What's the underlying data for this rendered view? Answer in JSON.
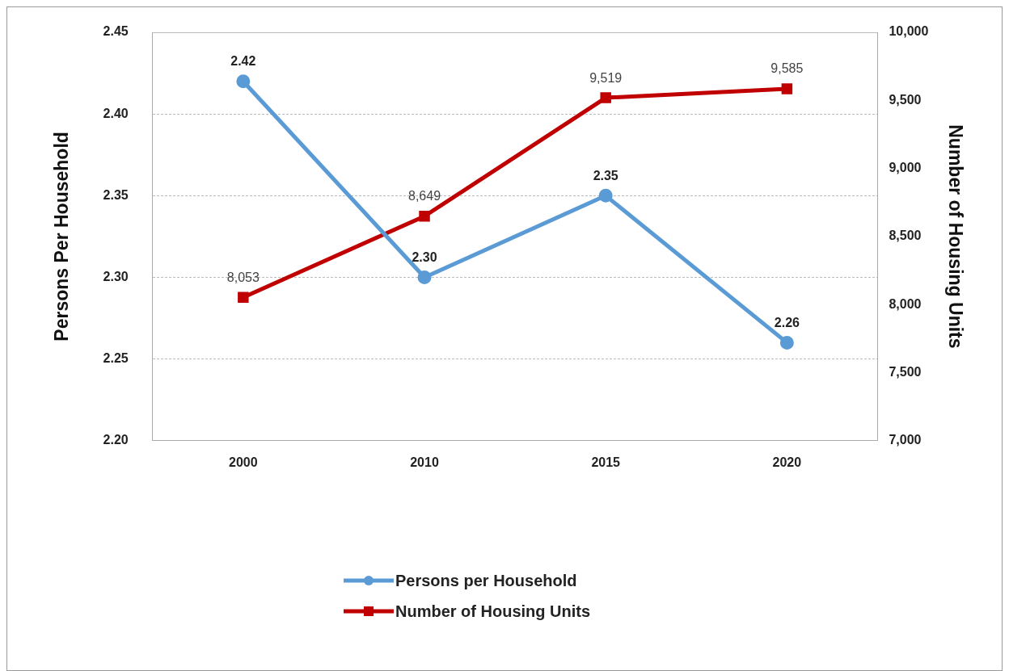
{
  "chart_data": {
    "type": "line",
    "categories": [
      "2000",
      "2010",
      "2015",
      "2020"
    ],
    "ylabel": "Persons Per Household",
    "y2label": "Number of Housing Units",
    "ylim": [
      2.2,
      2.45
    ],
    "yticks": [
      {
        "value": 2.2,
        "label": "2.20"
      },
      {
        "value": 2.25,
        "label": "2.25"
      },
      {
        "value": 2.3,
        "label": "2.30"
      },
      {
        "value": 2.35,
        "label": "2.35"
      },
      {
        "value": 2.4,
        "label": "2.40"
      },
      {
        "value": 2.45,
        "label": "2.45"
      }
    ],
    "y2lim": [
      7000,
      10000
    ],
    "y2ticks": [
      {
        "value": 7000,
        "label": "7,000"
      },
      {
        "value": 7500,
        "label": "7,500"
      },
      {
        "value": 8000,
        "label": "8,000"
      },
      {
        "value": 8500,
        "label": "8,500"
      },
      {
        "value": 9000,
        "label": "9,000"
      },
      {
        "value": 9500,
        "label": "9,500"
      },
      {
        "value": 10000,
        "label": "10,000"
      }
    ],
    "grid": "y",
    "legend": "bottom",
    "line_style": "solid",
    "series": [
      {
        "name": "Persons per Household",
        "color": "#5b9bd5",
        "marker": "circle",
        "values": [
          2.42,
          2.3,
          2.35,
          2.26
        ],
        "value_labels": [
          "2.42",
          "2.30",
          "2.35",
          "2.26"
        ]
      },
      {
        "name": "Number of Housing Units",
        "color": "#c00000",
        "marker": "square",
        "axis": "y2",
        "values": [
          8053,
          8649,
          9519,
          9585
        ],
        "value_labels": [
          "8,053",
          "8,649",
          "9,519",
          "9,585"
        ]
      }
    ]
  }
}
